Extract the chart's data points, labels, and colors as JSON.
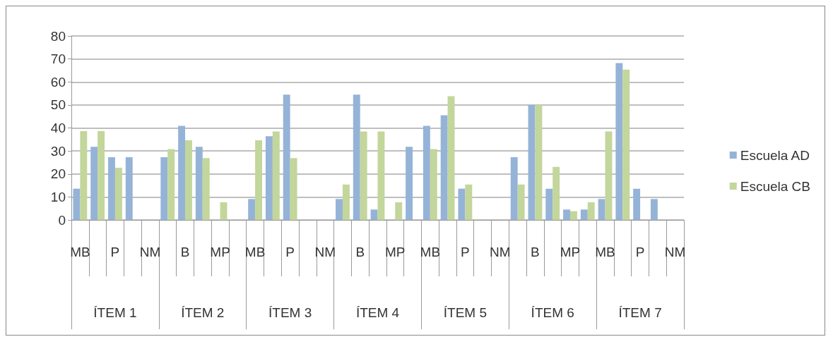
{
  "chart_data": {
    "type": "bar",
    "categories": [
      "MB",
      null,
      "P",
      null,
      "NM",
      null,
      "B",
      null,
      "MP",
      null,
      "MB",
      null,
      "P",
      null,
      "NM",
      null,
      "B",
      null,
      "MP",
      null,
      "MB",
      null,
      "P",
      null,
      "NM",
      null,
      "B",
      null,
      "MP",
      null,
      "MB",
      null,
      "P",
      null,
      "NM"
    ],
    "series": [
      {
        "name": "Escuela AD",
        "color": "#95b3d7",
        "values": [
          13.6,
          31.8,
          27.3,
          27.3,
          0,
          27.3,
          40.9,
          31.8,
          0,
          0,
          9.1,
          36.4,
          54.5,
          0,
          0,
          9.1,
          54.5,
          4.5,
          0,
          31.8,
          40.9,
          45.5,
          13.6,
          0,
          0,
          27.3,
          50,
          13.6,
          4.5,
          4.5,
          9.1,
          68.2,
          13.6,
          9.1,
          0
        ]
      },
      {
        "name": "Escuela CB",
        "color": "#c3d69b",
        "values": [
          38.6,
          38.6,
          22.7,
          0,
          0,
          30.8,
          34.6,
          26.9,
          7.7,
          0,
          34.6,
          38.5,
          26.9,
          0,
          0,
          15.4,
          38.5,
          38.5,
          7.7,
          0,
          30.8,
          53.8,
          15.4,
          0,
          0,
          15.4,
          50,
          23.1,
          3.8,
          7.7,
          38.5,
          65.4,
          0,
          0,
          0
        ]
      }
    ],
    "annotations": [
      "ÍTEM 1",
      "ÍTEM 2",
      "ÍTEM 3",
      "ÍTEM 4",
      "ÍTEM 5",
      "ÍTEM 6",
      "ÍTEM 7"
    ],
    "ylim": [
      0,
      80
    ],
    "yticks": [
      0,
      10,
      20,
      30,
      40,
      50,
      60,
      70,
      80
    ],
    "grid": "y",
    "legend": "right"
  }
}
